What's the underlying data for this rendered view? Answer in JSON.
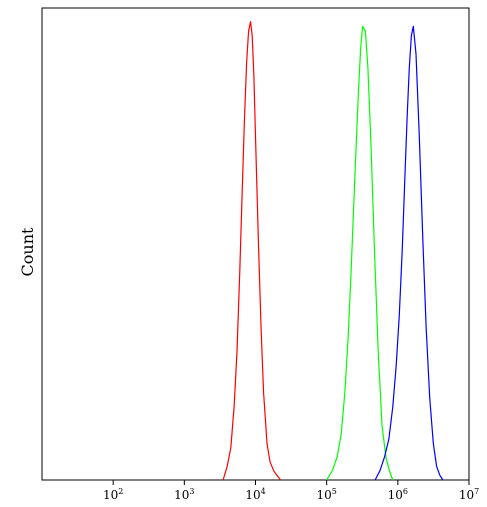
{
  "chart_data": {
    "type": "line",
    "title": "",
    "xlabel": "",
    "ylabel": "Count",
    "x_scale": "log",
    "xlim": [
      10,
      10000000
    ],
    "ylim": [
      0,
      1.03
    ],
    "grid": false,
    "legend": "none",
    "x_ticks": [
      {
        "base": "10",
        "exp": "2",
        "value": 100
      },
      {
        "base": "10",
        "exp": "3",
        "value": 1000
      },
      {
        "base": "10",
        "exp": "4",
        "value": 10000
      },
      {
        "base": "10",
        "exp": "5",
        "value": 100000
      },
      {
        "base": "10",
        "exp": "6",
        "value": 1000000
      },
      {
        "base": "10",
        "exp": "7",
        "value": 10000000
      }
    ],
    "series": [
      {
        "color": "#ff0000",
        "x": [
          3500,
          4000,
          4500,
          5000,
          5500,
          6000,
          6500,
          7000,
          7500,
          8000,
          8500,
          9000,
          9500,
          10000,
          11000,
          12000,
          13000,
          14500,
          16000,
          18000,
          20000,
          22500
        ],
        "y": [
          0.0,
          0.03,
          0.07,
          0.16,
          0.28,
          0.45,
          0.63,
          0.79,
          0.91,
          0.98,
          1.0,
          0.97,
          0.88,
          0.75,
          0.52,
          0.33,
          0.19,
          0.08,
          0.04,
          0.02,
          0.01,
          0.0
        ]
      },
      {
        "color": "#00ff00",
        "x": [
          100000,
          120000,
          140000,
          160000,
          180000,
          200000,
          220000,
          250000,
          280000,
          300000,
          320000,
          350000,
          380000,
          420000,
          470000,
          530000,
          600000,
          680000,
          760000,
          850000
        ],
        "y": [
          0.0,
          0.02,
          0.05,
          0.1,
          0.19,
          0.31,
          0.45,
          0.67,
          0.85,
          0.94,
          0.99,
          0.98,
          0.9,
          0.73,
          0.5,
          0.28,
          0.12,
          0.05,
          0.02,
          0.0
        ]
      },
      {
        "color": "#0000ff",
        "x": [
          480000,
          560000,
          650000,
          750000,
          850000,
          950000,
          1050000,
          1150000,
          1250000,
          1350000,
          1450000,
          1550000,
          1650000,
          1800000,
          2000000,
          2250000,
          2500000,
          2800000,
          3150000,
          3500000,
          3900000,
          4300000
        ],
        "y": [
          0.0,
          0.02,
          0.05,
          0.09,
          0.16,
          0.25,
          0.36,
          0.5,
          0.65,
          0.79,
          0.9,
          0.97,
          0.99,
          0.93,
          0.75,
          0.52,
          0.33,
          0.18,
          0.08,
          0.03,
          0.01,
          0.0
        ]
      }
    ]
  }
}
